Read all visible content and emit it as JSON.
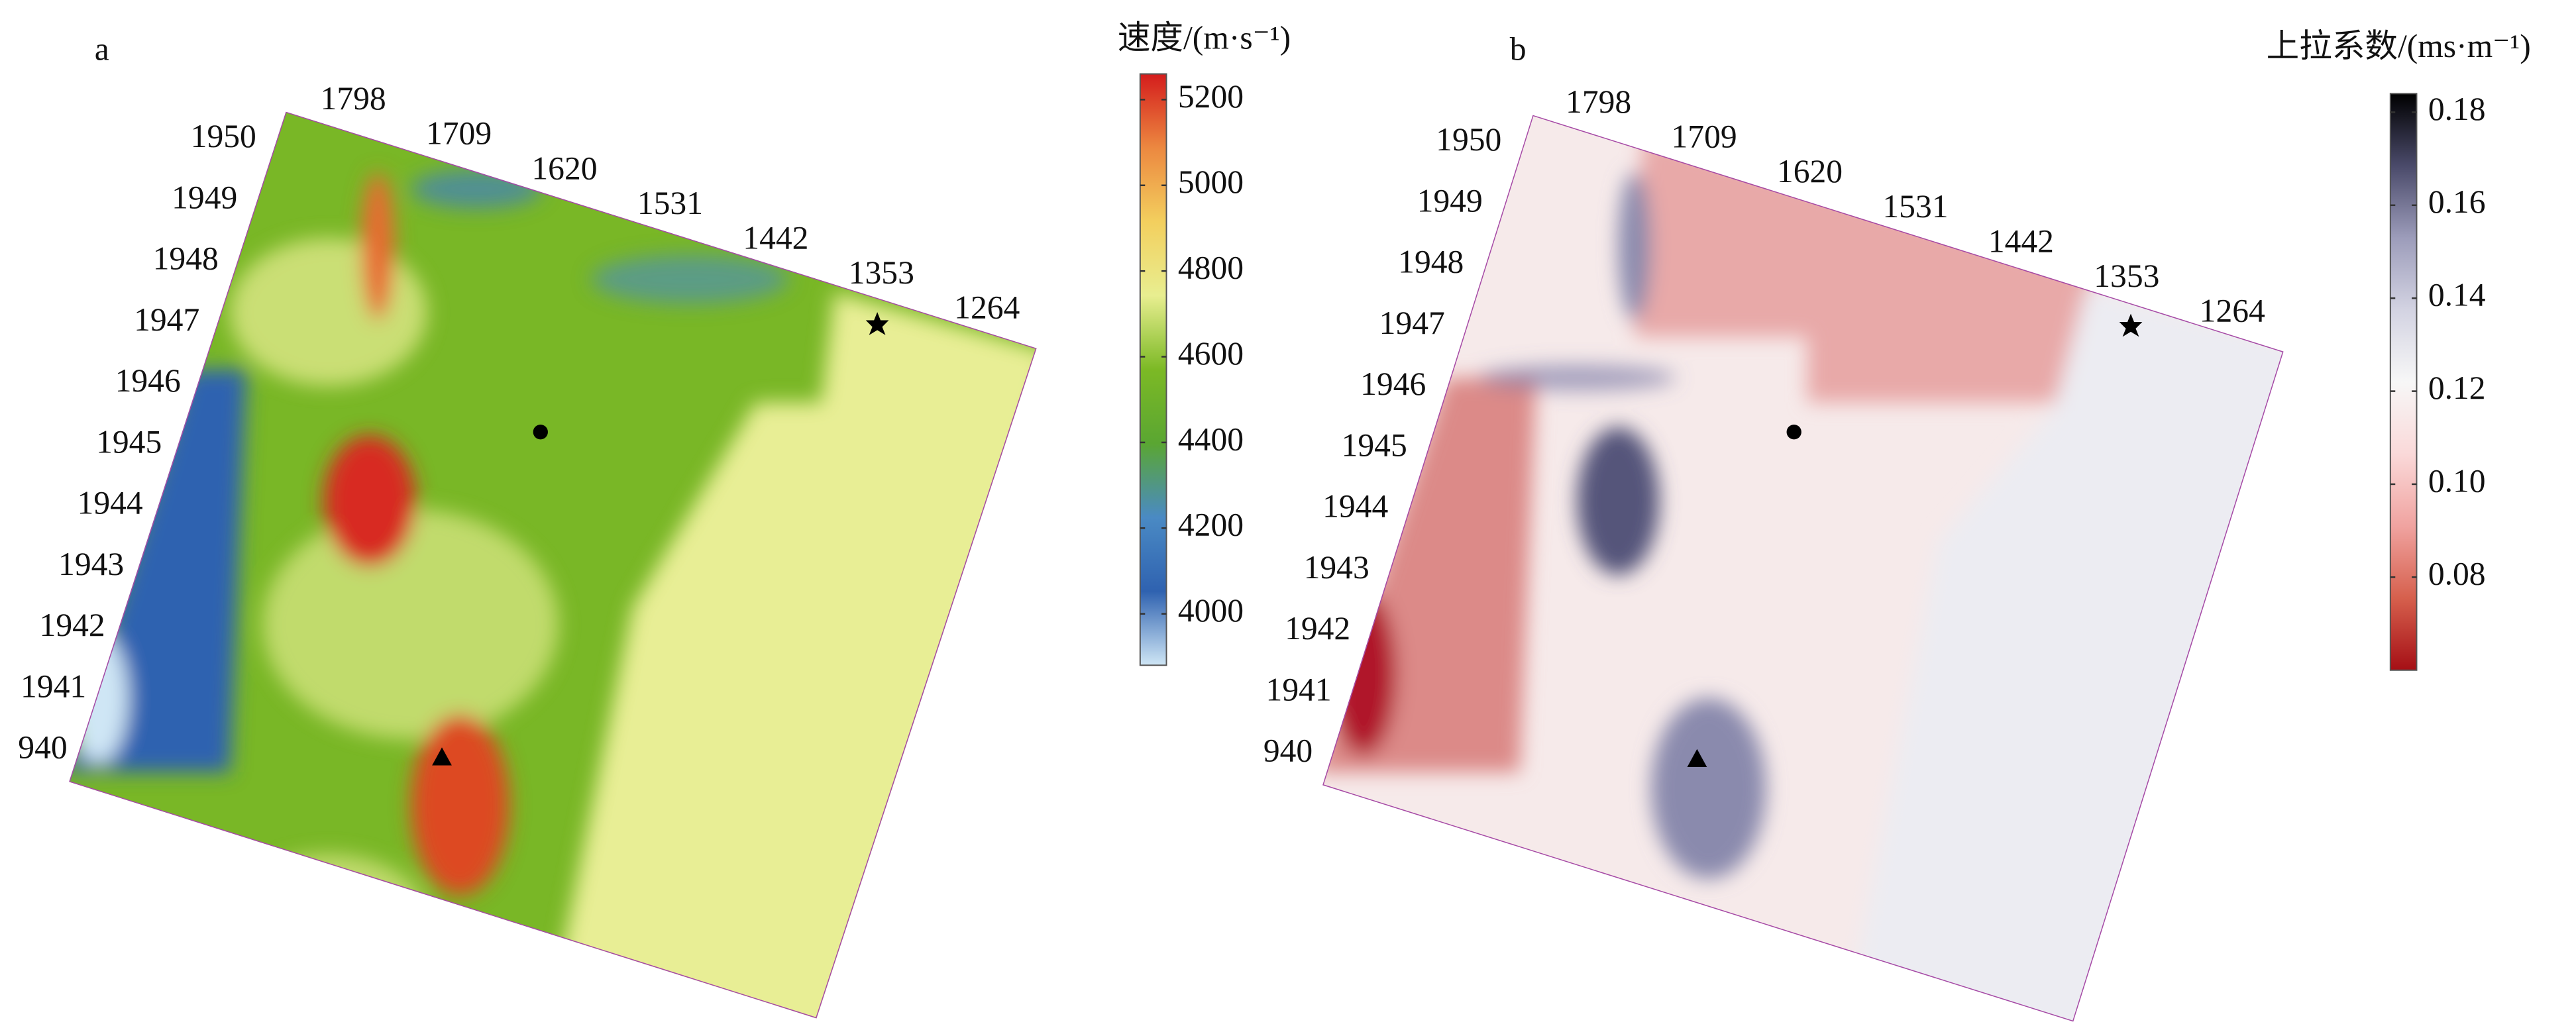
{
  "chart_data": [
    {
      "type": "heatmap",
      "panel_label": "a",
      "colorbar_title": "速度/(m·s⁻¹)",
      "clim": [
        3880,
        5260
      ],
      "colorbar_ticks": [
        4000,
        4200,
        4400,
        4600,
        4800,
        5000,
        5200
      ],
      "colormap": [
        "#cfe6f5",
        "#2f62b0",
        "#4a8ac4",
        "#5aa632",
        "#7cb925",
        "#e8ee90",
        "#f3cf5e",
        "#ec8840",
        "#d41c1c"
      ],
      "top_labels": [
        "1798",
        "1709",
        "1620",
        "1531",
        "1442",
        "1353",
        "1264"
      ],
      "left_labels": [
        "1950",
        "1949",
        "1948",
        "1947",
        "1946",
        "1945",
        "1944",
        "1943",
        "1942",
        "1941",
        "940"
      ]
    },
    {
      "type": "heatmap",
      "panel_label": "b",
      "colorbar_title": "上拉系数/(ms·m⁻¹)",
      "clim": [
        0.06,
        0.184
      ],
      "colorbar_ticks": [
        0.08,
        {
          "value": 0.1,
          "label": "0.10"
        },
        0.12,
        0.14,
        0.16,
        0.18
      ],
      "colormap": [
        "#a50f15",
        "#d6604d",
        "#f0a3a0",
        "#fad9d9",
        "#f7f7f7",
        "#d3d3e2",
        "#9c9cba",
        "#4a4a6a",
        "#000000"
      ],
      "top_labels": [
        "1798",
        "1709",
        "1620",
        "1531",
        "1442",
        "1353",
        "1264"
      ],
      "left_labels": [
        "1950",
        "1949",
        "1948",
        "1947",
        "1946",
        "1945",
        "1944",
        "1943",
        "1942",
        "1941",
        "940"
      ]
    }
  ]
}
